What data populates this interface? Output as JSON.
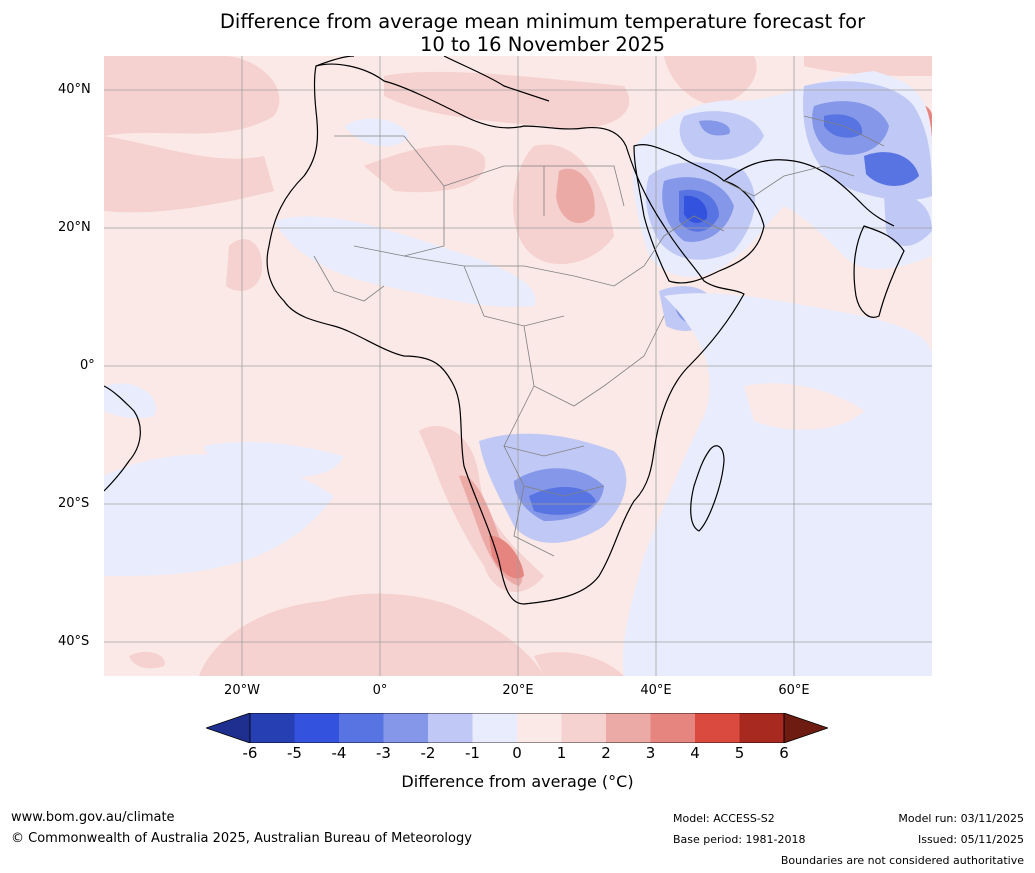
{
  "title": {
    "line1": "Difference from average mean minimum temperature forecast for",
    "line2": "10 to 16 November 2025"
  },
  "map": {
    "latitude_labels": [
      "40°N",
      "20°N",
      "0°",
      "20°S",
      "40°S"
    ],
    "longitude_labels": [
      "20°W",
      "0°",
      "20°E",
      "40°E",
      "60°E"
    ],
    "region": "Africa, Middle East and western Indian Ocean",
    "colors": {
      "ocean_base": "#fbe9e7",
      "gridline": "#a0a0a0",
      "coast": "#000000",
      "border": "#808080"
    }
  },
  "legend": {
    "ticks": [
      "-6",
      "-5",
      "-4",
      "-3",
      "-2",
      "-1",
      "0",
      "1",
      "2",
      "3",
      "4",
      "5",
      "6"
    ],
    "colors": [
      "#1f2f8f",
      "#263fb2",
      "#3352dd",
      "#5874e3",
      "#8497e8",
      "#c0c9f5",
      "#e9ecfc",
      "#fbe9e7",
      "#f5d1cf",
      "#ecaaa7",
      "#e6847f",
      "#db4a3f",
      "#a7291f",
      "#6e1c12"
    ],
    "label": "Difference from average (°C)"
  },
  "footer": {
    "website": "www.bom.gov.au/climate",
    "copyright": "© Commonwealth of Australia 2025, Australian Bureau of Meteorology",
    "model": "Model: ACCESS-S2",
    "base_period": "Base period: 1981-2018",
    "model_run": "Model run: 03/11/2025",
    "issued": "Issued: 05/11/2025",
    "disclaimer": "Boundaries are not considered authoritative"
  }
}
